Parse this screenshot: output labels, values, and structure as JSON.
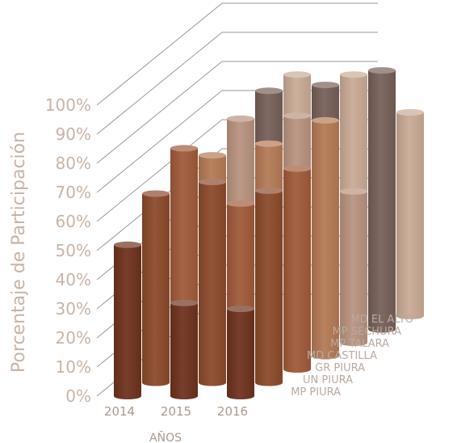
{
  "chart_data": {
    "type": "bar",
    "style": "3d-cylinder",
    "ylabel": "Porcentaje de Participación",
    "xlabel": "AÑOS",
    "ylim": [
      0,
      100
    ],
    "yticks": [
      "0%",
      "10%",
      "20%",
      "30%",
      "40%",
      "50%",
      "60%",
      "70%",
      "80%",
      "90%",
      "100%"
    ],
    "categories": [
      "2014",
      "2015",
      "2016"
    ],
    "grid": true,
    "series": [
      {
        "name": "MP PIURA",
        "color": "#6e321d",
        "values": [
          52,
          32,
          30
        ]
      },
      {
        "name": "UN PIURA",
        "color": "#8c4a2b",
        "values": [
          65,
          69,
          66
        ]
      },
      {
        "name": "GR PIURA",
        "color": "#a05a3a",
        "values": [
          76,
          57,
          69
        ]
      },
      {
        "name": "MD CASTILLA",
        "color": "#b57a55",
        "values": [
          69,
          73,
          81
        ]
      },
      {
        "name": "MP TALARA",
        "color": "#b9937f",
        "values": [
          77,
          78,
          52
        ]
      },
      {
        "name": "MP SECHURA",
        "color": "#766058",
        "values": [
          82,
          84,
          89
        ]
      },
      {
        "name": "MD EL ALTO",
        "color": "#c9ab96",
        "values": [
          83,
          83,
          70
        ]
      }
    ]
  }
}
